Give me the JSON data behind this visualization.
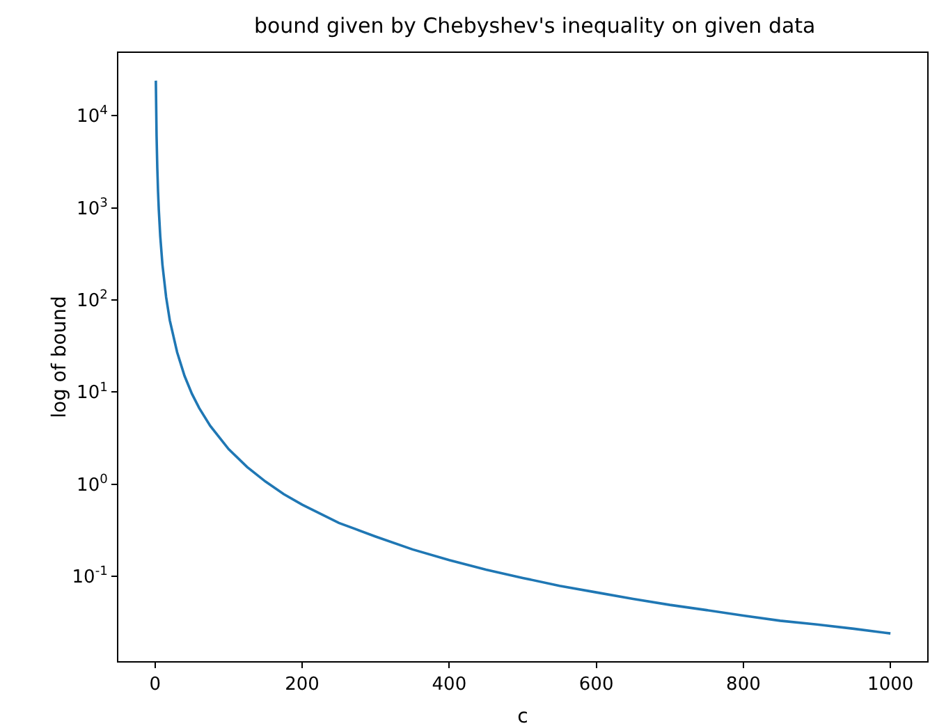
{
  "chart_data": {
    "type": "line",
    "title": "bound given by Chebyshev's inequality on given data",
    "xlabel": "c",
    "ylabel": "log of bound",
    "log": "y",
    "marker": "none",
    "line_style": "solid",
    "x": [
      1,
      2,
      3,
      4,
      5,
      7,
      10,
      15,
      20,
      30,
      40,
      50,
      60,
      75,
      100,
      125,
      150,
      175,
      200,
      250,
      300,
      350,
      400,
      450,
      500,
      550,
      600,
      650,
      700,
      750,
      800,
      850,
      900,
      950,
      1000
    ],
    "series": [
      {
        "color": "#1f77b4",
        "values": [
          24000,
          6000,
          2700,
          1500,
          960,
          490,
          240,
          107,
          60,
          27,
          15,
          9.6,
          6.7,
          4.3,
          2.4,
          1.54,
          1.07,
          0.78,
          0.6,
          0.38,
          0.27,
          0.196,
          0.15,
          0.118,
          0.096,
          0.079,
          0.067,
          0.057,
          0.049,
          0.043,
          0.0375,
          0.033,
          0.03,
          0.027,
          0.024
        ]
      }
    ],
    "xlim": [
      -50,
      1050
    ],
    "xticks": [
      0,
      200,
      400,
      600,
      800,
      1000
    ],
    "ylim": [
      0.012,
      48000
    ],
    "yticks": [
      {
        "value": 0.1,
        "label": "10$^{-1}$"
      },
      {
        "value": 1,
        "label": "10$^{0}$"
      },
      {
        "value": 10,
        "label": "10$^{1}$"
      },
      {
        "value": 100,
        "label": "10$^{2}$"
      },
      {
        "value": 1000,
        "label": "10$^{3}$"
      },
      {
        "value": 10000,
        "label": "10$^{4}$"
      }
    ]
  }
}
